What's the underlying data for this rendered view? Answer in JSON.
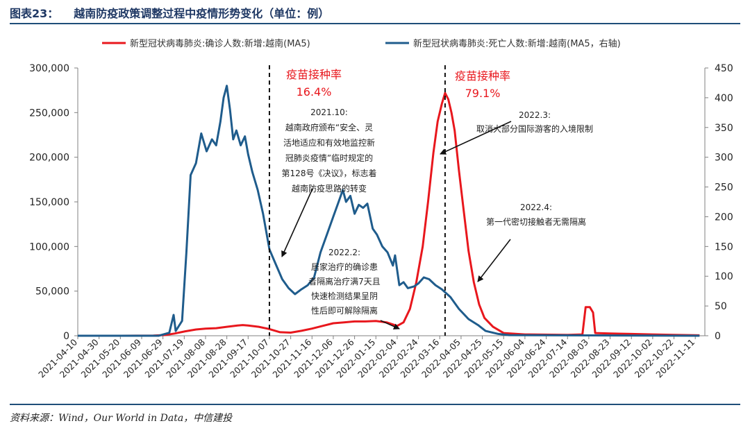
{
  "figure_title": {
    "label": "图表23：",
    "text": "越南防疫政策调整过程中疫情形势变化（单位：例）"
  },
  "source_note": "资料来源：Wind，Our World in Data，中信建投",
  "colors": {
    "cases": "#e8171d",
    "deaths": "#1f5c8c",
    "axis": "#808080",
    "frame": "#1f4e79"
  },
  "chart_data": {
    "type": "line",
    "title": "",
    "legend_position": "top",
    "grid": false,
    "x_tick_labels": [
      "2021-04-10",
      "2021-04-30",
      "2021-05-20",
      "2021-06-09",
      "2021-06-29",
      "2021-07-19",
      "2021-08-08",
      "2021-08-28",
      "2021-09-17",
      "2021-10-07",
      "2021-10-27",
      "2021-11-16",
      "2021-12-06",
      "2021-12-26",
      "2022-01-15",
      "2022-02-04",
      "2022-02-24",
      "2022-03-16",
      "2022-04-05",
      "2022-04-25",
      "2022-05-15",
      "2022-06-04",
      "2022-06-24",
      "2022-07-14",
      "2022-08-03",
      "2022-08-23",
      "2022-09-12",
      "2022-10-02",
      "2022-10-22",
      "2022-11-11"
    ],
    "xlim": [
      "2021-04-10",
      "2022-11-20"
    ],
    "y_left": {
      "label": "",
      "ylim": [
        0,
        300000
      ],
      "ticks": [
        0,
        50000,
        100000,
        150000,
        200000,
        250000,
        300000
      ],
      "tick_labels": [
        "0",
        "50,000",
        "100,000",
        "150,000",
        "200,000",
        "250,000",
        "300,000"
      ]
    },
    "y_right": {
      "label": "",
      "ylim": [
        0,
        450
      ],
      "ticks": [
        0,
        50,
        100,
        150,
        200,
        250,
        300,
        350,
        400,
        450
      ],
      "tick_labels": [
        "0",
        "50",
        "100",
        "150",
        "200",
        "250",
        "300",
        "350",
        "400",
        "450"
      ]
    },
    "series": [
      {
        "name": "新型冠状病毒肺炎:确诊人数:新增:越南(MA5)",
        "axis": "left",
        "color": "#e8171d",
        "points": [
          [
            "2021-04-10",
            0
          ],
          [
            "2021-05-20",
            0
          ],
          [
            "2021-06-20",
            200
          ],
          [
            "2021-07-01",
            800
          ],
          [
            "2021-07-10",
            2500
          ],
          [
            "2021-07-20",
            5000
          ],
          [
            "2021-07-30",
            7000
          ],
          [
            "2021-08-08",
            8000
          ],
          [
            "2021-08-18",
            8500
          ],
          [
            "2021-08-28",
            10000
          ],
          [
            "2021-09-07",
            11500
          ],
          [
            "2021-09-12",
            12000
          ],
          [
            "2021-09-17",
            11500
          ],
          [
            "2021-09-27",
            10000
          ],
          [
            "2021-10-07",
            7500
          ],
          [
            "2021-10-17",
            4000
          ],
          [
            "2021-10-27",
            3500
          ],
          [
            "2021-11-06",
            5500
          ],
          [
            "2021-11-16",
            8000
          ],
          [
            "2021-11-26",
            11000
          ],
          [
            "2021-12-06",
            14000
          ],
          [
            "2021-12-16",
            15000
          ],
          [
            "2021-12-26",
            16000
          ],
          [
            "2022-01-05",
            16000
          ],
          [
            "2022-01-15",
            16500
          ],
          [
            "2022-01-25",
            15000
          ],
          [
            "2022-02-04",
            11000
          ],
          [
            "2022-02-10",
            15000
          ],
          [
            "2022-02-16",
            30000
          ],
          [
            "2022-02-22",
            60000
          ],
          [
            "2022-02-28",
            100000
          ],
          [
            "2022-03-05",
            150000
          ],
          [
            "2022-03-10",
            205000
          ],
          [
            "2022-03-14",
            240000
          ],
          [
            "2022-03-18",
            260000
          ],
          [
            "2022-03-21",
            272000
          ],
          [
            "2022-03-24",
            265000
          ],
          [
            "2022-03-27",
            250000
          ],
          [
            "2022-03-30",
            230000
          ],
          [
            "2022-04-03",
            185000
          ],
          [
            "2022-04-07",
            145000
          ],
          [
            "2022-04-12",
            95000
          ],
          [
            "2022-04-17",
            60000
          ],
          [
            "2022-04-22",
            35000
          ],
          [
            "2022-04-27",
            20000
          ],
          [
            "2022-05-05",
            10000
          ],
          [
            "2022-05-15",
            3000
          ],
          [
            "2022-06-04",
            1500
          ],
          [
            "2022-07-14",
            1000
          ],
          [
            "2022-07-28",
            1500
          ],
          [
            "2022-07-31",
            32000
          ],
          [
            "2022-08-04",
            32000
          ],
          [
            "2022-08-07",
            26000
          ],
          [
            "2022-08-09",
            3000
          ],
          [
            "2022-08-23",
            2500
          ],
          [
            "2022-09-12",
            2000
          ],
          [
            "2022-10-02",
            1500
          ],
          [
            "2022-10-22",
            1000
          ],
          [
            "2022-11-15",
            500
          ]
        ]
      },
      {
        "name": "新型冠状病毒肺炎:死亡人数:新增:越南(MA5，右轴)",
        "axis": "right",
        "color": "#1f5c8c",
        "points": [
          [
            "2021-04-10",
            0
          ],
          [
            "2021-06-25",
            0
          ],
          [
            "2021-07-05",
            5
          ],
          [
            "2021-07-09",
            35
          ],
          [
            "2021-07-11",
            8
          ],
          [
            "2021-07-17",
            25
          ],
          [
            "2021-07-21",
            140
          ],
          [
            "2021-07-25",
            270
          ],
          [
            "2021-07-30",
            290
          ],
          [
            "2021-08-04",
            340
          ],
          [
            "2021-08-09",
            310
          ],
          [
            "2021-08-14",
            330
          ],
          [
            "2021-08-18",
            320
          ],
          [
            "2021-08-22",
            360
          ],
          [
            "2021-08-25",
            400
          ],
          [
            "2021-08-28",
            420
          ],
          [
            "2021-08-31",
            380
          ],
          [
            "2021-09-03",
            330
          ],
          [
            "2021-09-06",
            345
          ],
          [
            "2021-09-10",
            320
          ],
          [
            "2021-09-14",
            335
          ],
          [
            "2021-09-17",
            305
          ],
          [
            "2021-09-21",
            275
          ],
          [
            "2021-09-26",
            245
          ],
          [
            "2021-10-01",
            205
          ],
          [
            "2021-10-07",
            145
          ],
          [
            "2021-10-13",
            120
          ],
          [
            "2021-10-19",
            95
          ],
          [
            "2021-10-25",
            80
          ],
          [
            "2021-10-31",
            70
          ],
          [
            "2021-11-06",
            78
          ],
          [
            "2021-11-12",
            85
          ],
          [
            "2021-11-18",
            98
          ],
          [
            "2021-11-24",
            140
          ],
          [
            "2021-11-30",
            170
          ],
          [
            "2021-12-06",
            200
          ],
          [
            "2021-12-11",
            225
          ],
          [
            "2021-12-15",
            245
          ],
          [
            "2021-12-18",
            225
          ],
          [
            "2021-12-22",
            235
          ],
          [
            "2021-12-26",
            205
          ],
          [
            "2021-12-30",
            220
          ],
          [
            "2022-01-03",
            215
          ],
          [
            "2022-01-07",
            222
          ],
          [
            "2022-01-12",
            180
          ],
          [
            "2022-01-16",
            170
          ],
          [
            "2022-01-21",
            150
          ],
          [
            "2022-01-26",
            140
          ],
          [
            "2022-01-31",
            118
          ],
          [
            "2022-02-02",
            135
          ],
          [
            "2022-02-06",
            85
          ],
          [
            "2022-02-10",
            90
          ],
          [
            "2022-02-14",
            80
          ],
          [
            "2022-02-20",
            83
          ],
          [
            "2022-02-24",
            88
          ],
          [
            "2022-03-01",
            98
          ],
          [
            "2022-03-06",
            95
          ],
          [
            "2022-03-12",
            85
          ],
          [
            "2022-03-18",
            78
          ],
          [
            "2022-03-26",
            65
          ],
          [
            "2022-04-03",
            45
          ],
          [
            "2022-04-12",
            28
          ],
          [
            "2022-04-21",
            18
          ],
          [
            "2022-04-28",
            8
          ],
          [
            "2022-05-10",
            3
          ],
          [
            "2022-05-20",
            1
          ],
          [
            "2022-11-15",
            0
          ]
        ]
      }
    ],
    "annotations": [
      {
        "id": "vacc1",
        "lines": [
          "疫苗接种率",
          "16.4%"
        ],
        "x": "2021-10-07"
      },
      {
        "id": "vacc2",
        "lines": [
          "疫苗接种率",
          "79.1%"
        ],
        "x": "2022-03-21"
      },
      {
        "id": "a1",
        "lines": [
          "2021.10:",
          "越南政府颁布“安全、灵",
          "活地适应和有效地监控新",
          "冠肺炎疫情”临时规定的",
          "第128号《决议》，标志着",
          "越南防疫思路的转变"
        ]
      },
      {
        "id": "a2",
        "lines": [
          "2022.2:",
          "居家治疗的确诊患",
          "者隔离治疗满7天且",
          "快速检测结果呈阴",
          "性后即可解除隔离"
        ]
      },
      {
        "id": "a3",
        "lines": [
          "2022.3:",
          "取消大部分国际游客的入境限制"
        ]
      },
      {
        "id": "a4",
        "lines": [
          "2022.4:",
          "第一代密切接触者无需隔离"
        ]
      }
    ],
    "vlines": [
      "2021-10-07",
      "2022-03-21"
    ]
  }
}
